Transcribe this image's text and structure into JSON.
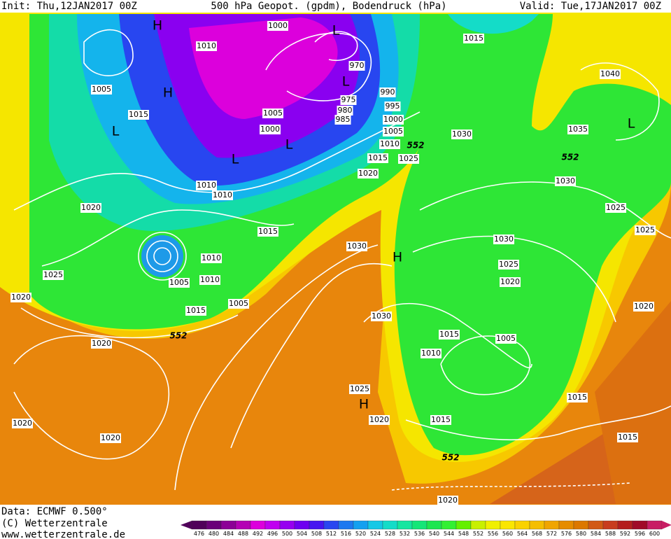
{
  "header": {
    "init": "Init: Thu,12JAN2017 00Z",
    "title": "500 hPa Geopot. (gpdm), Bodendruck (hPa)",
    "valid": "Valid: Tue,17JAN2017 00Z"
  },
  "footer": {
    "data": "Data: ECMWF  0.500°",
    "copyright": "(C) Wetterzentrale",
    "url": "www.wetterzentrale.de"
  },
  "map": {
    "isobar_labels": [
      "1000",
      "1010",
      "970",
      "1005",
      "975",
      "980",
      "985",
      "990",
      "995",
      "1000",
      "1005",
      "1010",
      "1015",
      "1025",
      "1020",
      "1015",
      "1005",
      "1000",
      "1010",
      "1010",
      "1015",
      "1040",
      "1035",
      "1030",
      "1030",
      "1025",
      "1025",
      "1020",
      "1015",
      "1030",
      "1010",
      "1005",
      "1010",
      "1005",
      "1015",
      "1025",
      "1020",
      "1030",
      "1030",
      "1025",
      "1020",
      "1020",
      "1015",
      "1005",
      "1010",
      "1020",
      "1025",
      "1020",
      "1015",
      "1020",
      "1020",
      "1015",
      "1015",
      "1020"
    ],
    "contour_labels": [
      "552",
      "552",
      "552",
      "552"
    ],
    "pressure_centers": [
      "H",
      "H",
      "L",
      "L",
      "L",
      "L",
      "L",
      "L",
      "H",
      "H"
    ]
  },
  "colorbar": {
    "levels": [
      476,
      480,
      484,
      488,
      492,
      496,
      500,
      504,
      508,
      512,
      516,
      520,
      524,
      528,
      532,
      536,
      540,
      544,
      548,
      552,
      556,
      560,
      564,
      568,
      572,
      576,
      580,
      584,
      588,
      592,
      596,
      600
    ],
    "colors": [
      "#50005a",
      "#6a0078",
      "#8c0096",
      "#b400b4",
      "#dc00dc",
      "#c000f0",
      "#9600f0",
      "#6e00f0",
      "#4614f0",
      "#2846f0",
      "#1e78f0",
      "#14a0f0",
      "#14c8e6",
      "#14dcc8",
      "#14e6a0",
      "#14e678",
      "#1ee650",
      "#32f032",
      "#64f000",
      "#c8f000",
      "#f0f000",
      "#fae600",
      "#fad200",
      "#f5be00",
      "#f0a500",
      "#e68c00",
      "#dc7800",
      "#d25a14",
      "#c83c1e",
      "#b41e1e",
      "#a00a28",
      "#c81e64"
    ]
  }
}
